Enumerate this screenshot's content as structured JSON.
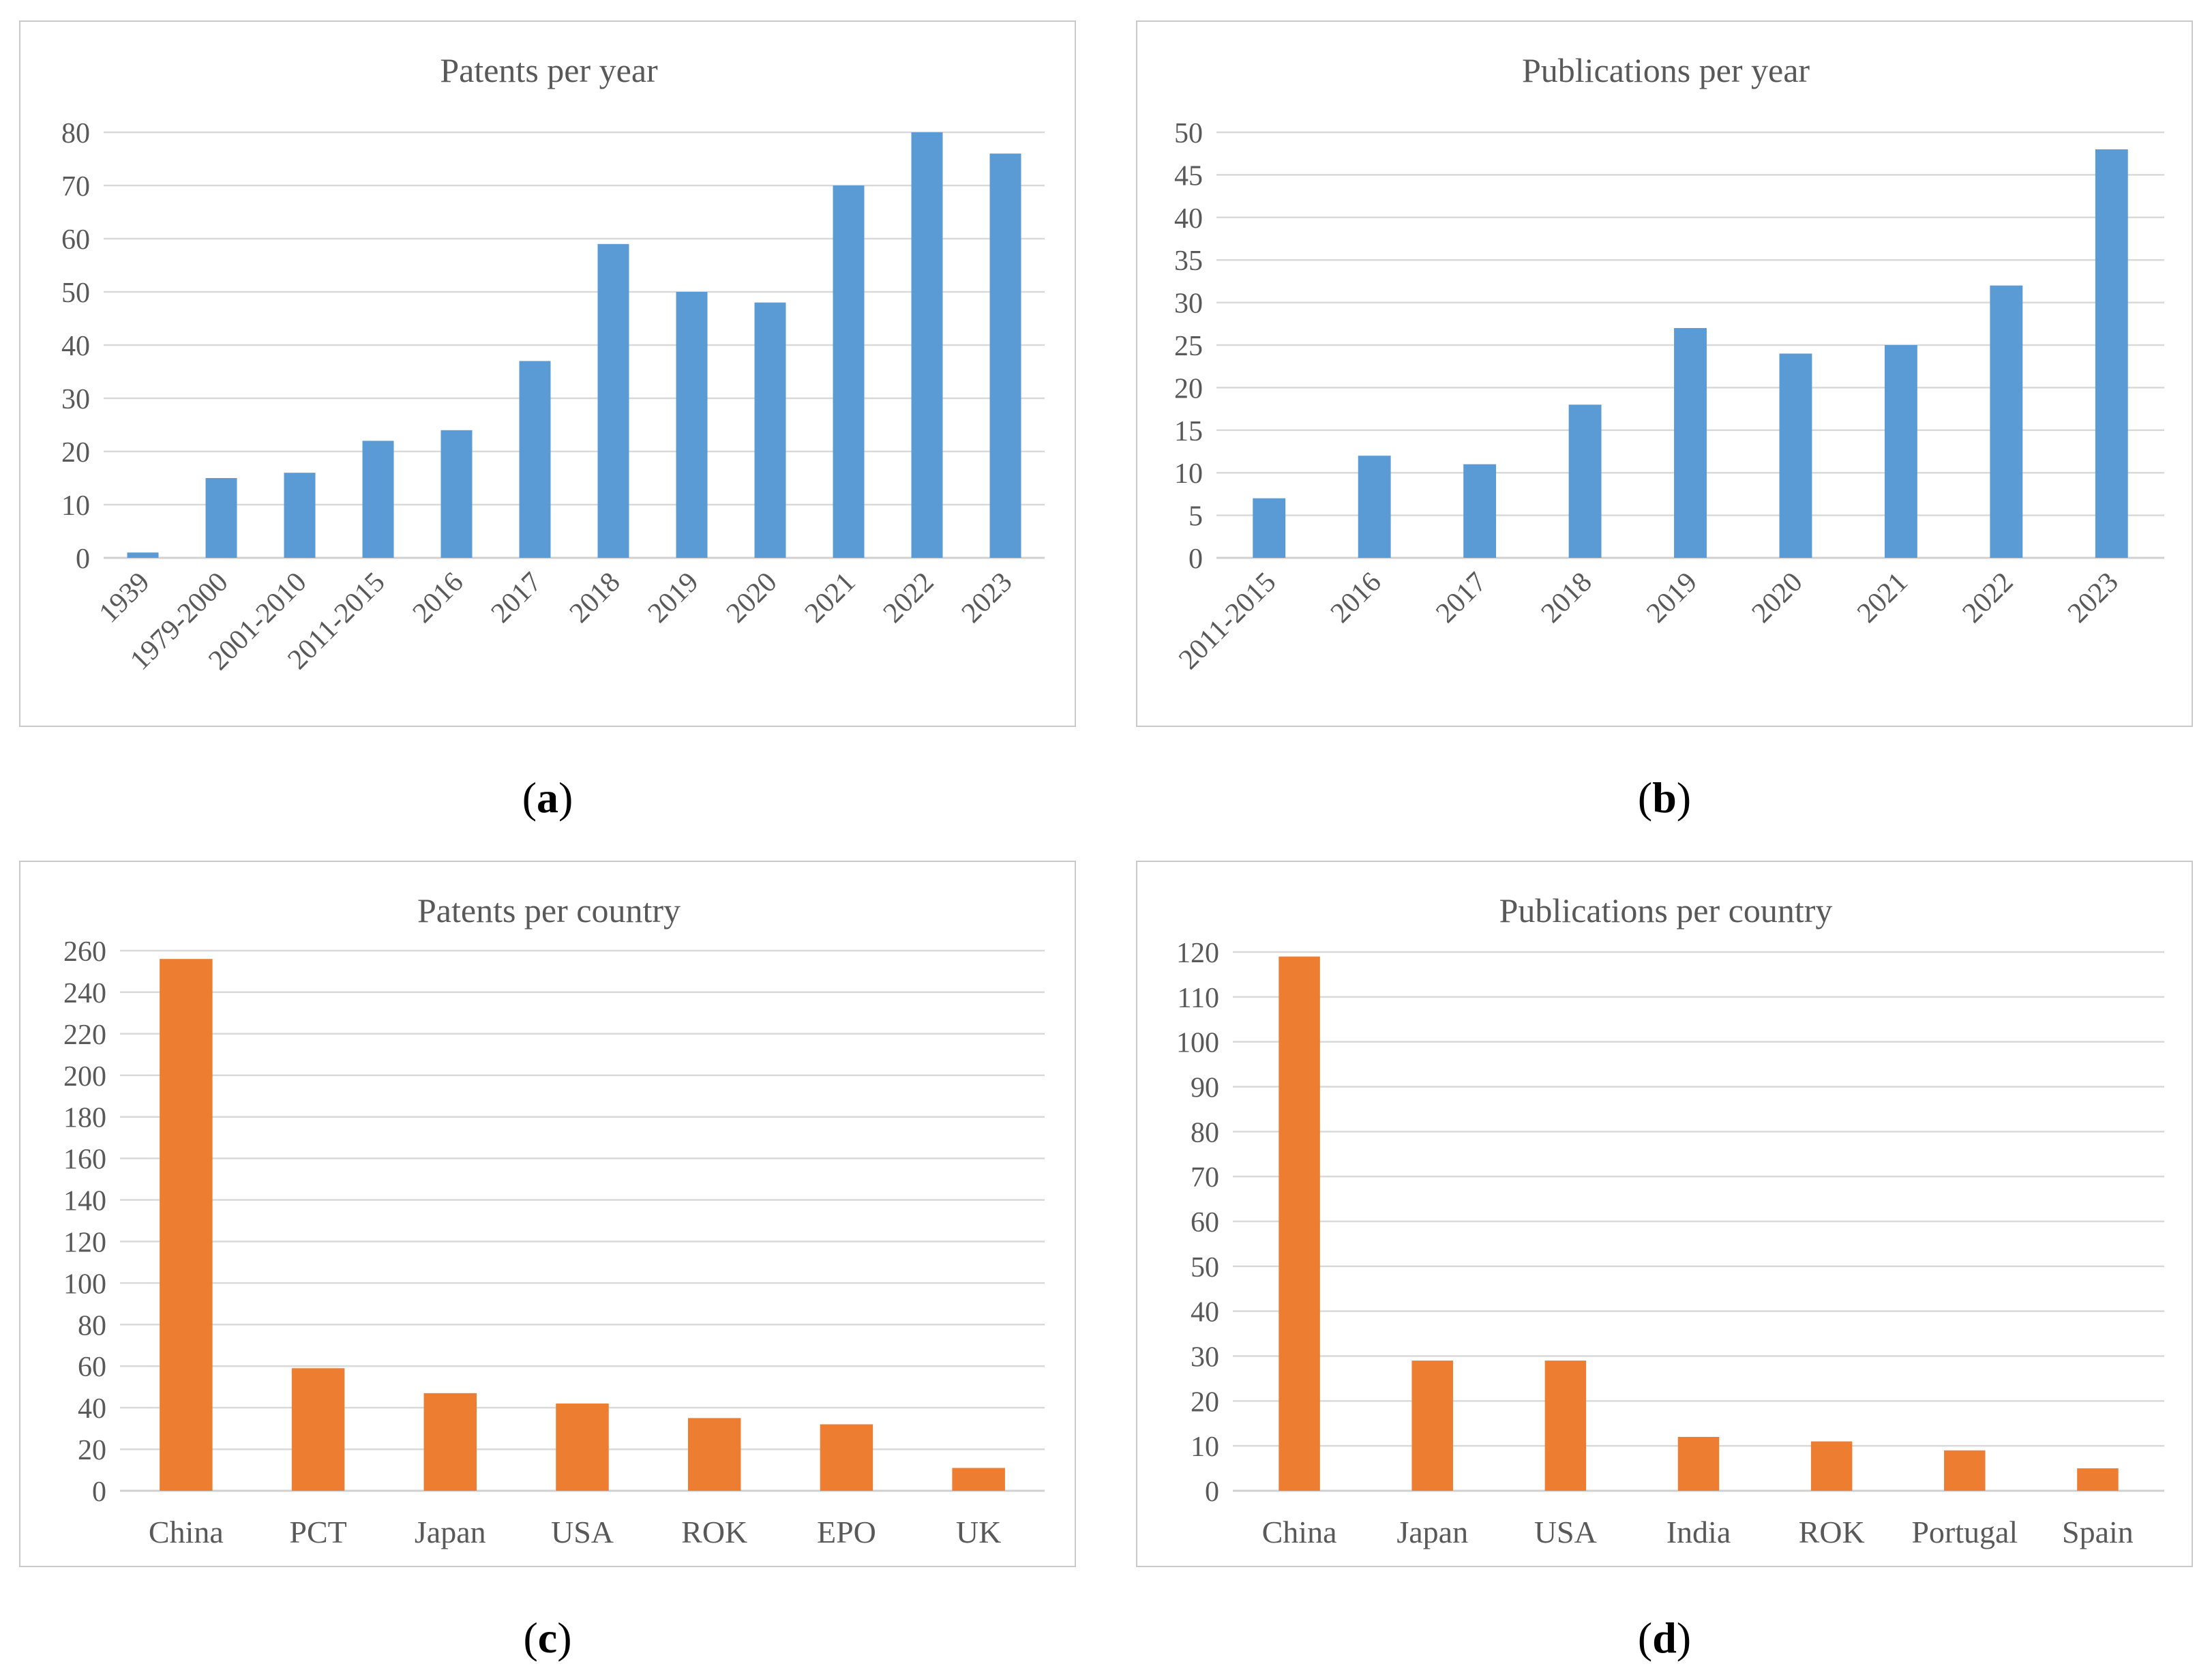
{
  "colors": {
    "blue": "#5b9bd5",
    "orange": "#ed7d31",
    "grid": "#d9d9d9",
    "text": "#595959",
    "frame": "#c9c9c9"
  },
  "chart_data": [
    {
      "id": "a",
      "type": "bar",
      "title": "Patents per year",
      "caption": "a",
      "categories": [
        "1939",
        "1979-2000",
        "2001-2010",
        "2011-2015",
        "2016",
        "2017",
        "2018",
        "2019",
        "2020",
        "2021",
        "2022",
        "2023"
      ],
      "values": [
        1,
        15,
        16,
        22,
        24,
        37,
        59,
        50,
        48,
        70,
        80,
        76
      ],
      "ylim": [
        0,
        80
      ],
      "yticks": [
        0,
        10,
        20,
        30,
        40,
        50,
        60,
        70,
        80
      ],
      "rotated_labels": true,
      "color": "#5b9bd5",
      "xlabel": "",
      "ylabel": "",
      "grid": true
    },
    {
      "id": "b",
      "type": "bar",
      "title": "Publications per year",
      "caption": "b",
      "categories": [
        "2011-2015",
        "2016",
        "2017",
        "2018",
        "2019",
        "2020",
        "2021",
        "2022",
        "2023"
      ],
      "values": [
        7,
        12,
        11,
        18,
        27,
        24,
        25,
        32,
        48
      ],
      "ylim": [
        0,
        50
      ],
      "yticks": [
        0,
        5,
        10,
        15,
        20,
        25,
        30,
        35,
        40,
        45,
        50
      ],
      "rotated_labels": true,
      "color": "#5b9bd5",
      "xlabel": "",
      "ylabel": "",
      "grid": true
    },
    {
      "id": "c",
      "type": "bar",
      "title": "Patents per country",
      "caption": "c",
      "categories": [
        "China",
        "PCT",
        "Japan",
        "USA",
        "ROK",
        "EPO",
        "UK"
      ],
      "values": [
        256,
        59,
        47,
        42,
        35,
        32,
        11
      ],
      "ylim": [
        0,
        260
      ],
      "yticks": [
        0,
        20,
        40,
        60,
        80,
        100,
        120,
        140,
        160,
        180,
        200,
        220,
        240,
        260
      ],
      "rotated_labels": false,
      "color": "#ed7d31",
      "xlabel": "",
      "ylabel": "",
      "grid": true
    },
    {
      "id": "d",
      "type": "bar",
      "title": "Publications per country",
      "caption": "d",
      "categories": [
        "China",
        "Japan",
        "USA",
        "India",
        "ROK",
        "Portugal",
        "Spain"
      ],
      "values": [
        119,
        29,
        29,
        12,
        11,
        9,
        5
      ],
      "ylim": [
        0,
        120
      ],
      "yticks": [
        0,
        10,
        20,
        30,
        40,
        50,
        60,
        70,
        80,
        90,
        100,
        110,
        120
      ],
      "rotated_labels": false,
      "color": "#ed7d31",
      "xlabel": "",
      "ylabel": "",
      "grid": true
    }
  ]
}
